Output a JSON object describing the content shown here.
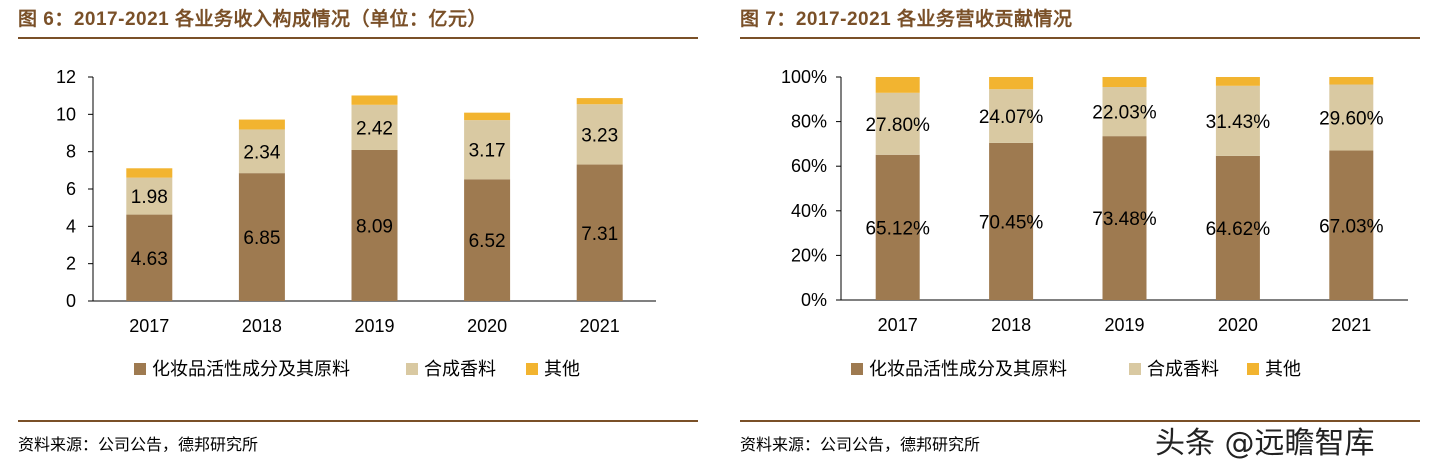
{
  "watermark": "头条 @远瞻智库",
  "charts": [
    {
      "figure_title": "图 6：2017-2021 各业务收入构成情况（单位：亿元）",
      "source": "资料来源：公司公告，德邦研究所"
    },
    {
      "figure_title": "图 7：2017-2021 各业务营收贡献情况",
      "source": "资料来源：公司公告，德邦研究所"
    }
  ],
  "colors": {
    "series1": "#9e7a50",
    "series2": "#d9c9a2",
    "series3": "#f2b430",
    "title": "#7a5028"
  },
  "chart_data": [
    {
      "type": "bar",
      "stacked": true,
      "title": "图 6：2017-2021 各业务收入构成情况（单位：亿元）",
      "xlabel": "",
      "ylabel": "",
      "ylim": [
        0,
        12
      ],
      "yticks": [
        0,
        2,
        4,
        6,
        8,
        10,
        12
      ],
      "ytick_labels": [
        "0",
        "2",
        "4",
        "6",
        "8",
        "10",
        "12"
      ],
      "categories": [
        "2017",
        "2018",
        "2019",
        "2020",
        "2021"
      ],
      "series": [
        {
          "name": "化妆品活性成分及其原料",
          "values": [
            4.63,
            6.85,
            8.09,
            6.52,
            7.31
          ],
          "labels": [
            "4.63",
            "6.85",
            "8.09",
            "6.52",
            "7.31"
          ]
        },
        {
          "name": "合成香料",
          "values": [
            1.98,
            2.34,
            2.42,
            3.17,
            3.23
          ],
          "labels": [
            "1.98",
            "2.34",
            "2.42",
            "3.17",
            "3.23"
          ]
        },
        {
          "name": "其他",
          "values": [
            0.5,
            0.53,
            0.5,
            0.4,
            0.33
          ],
          "labels": []
        }
      ],
      "legend_position": "bottom"
    },
    {
      "type": "bar",
      "stacked": true,
      "percent": true,
      "title": "图 7：2017-2021 各业务营收贡献情况",
      "xlabel": "",
      "ylabel": "",
      "ylim": [
        0,
        100
      ],
      "yticks": [
        0,
        20,
        40,
        60,
        80,
        100
      ],
      "ytick_labels": [
        "0%",
        "20%",
        "40%",
        "60%",
        "80%",
        "100%"
      ],
      "categories": [
        "2017",
        "2018",
        "2019",
        "2020",
        "2021"
      ],
      "series": [
        {
          "name": "化妆品活性成分及其原料",
          "values": [
            65.12,
            70.45,
            73.48,
            64.62,
            67.03
          ],
          "labels": [
            "65.12%",
            "70.45%",
            "73.48%",
            "64.62%",
            "67.03%"
          ]
        },
        {
          "name": "合成香料",
          "values": [
            27.8,
            24.07,
            22.03,
            31.43,
            29.6
          ],
          "labels": [
            "27.80%",
            "24.07%",
            "22.03%",
            "31.43%",
            "29.60%"
          ]
        },
        {
          "name": "其他",
          "values": [
            7.08,
            5.48,
            4.49,
            3.95,
            3.37
          ],
          "labels": []
        }
      ],
      "legend_position": "bottom"
    }
  ]
}
